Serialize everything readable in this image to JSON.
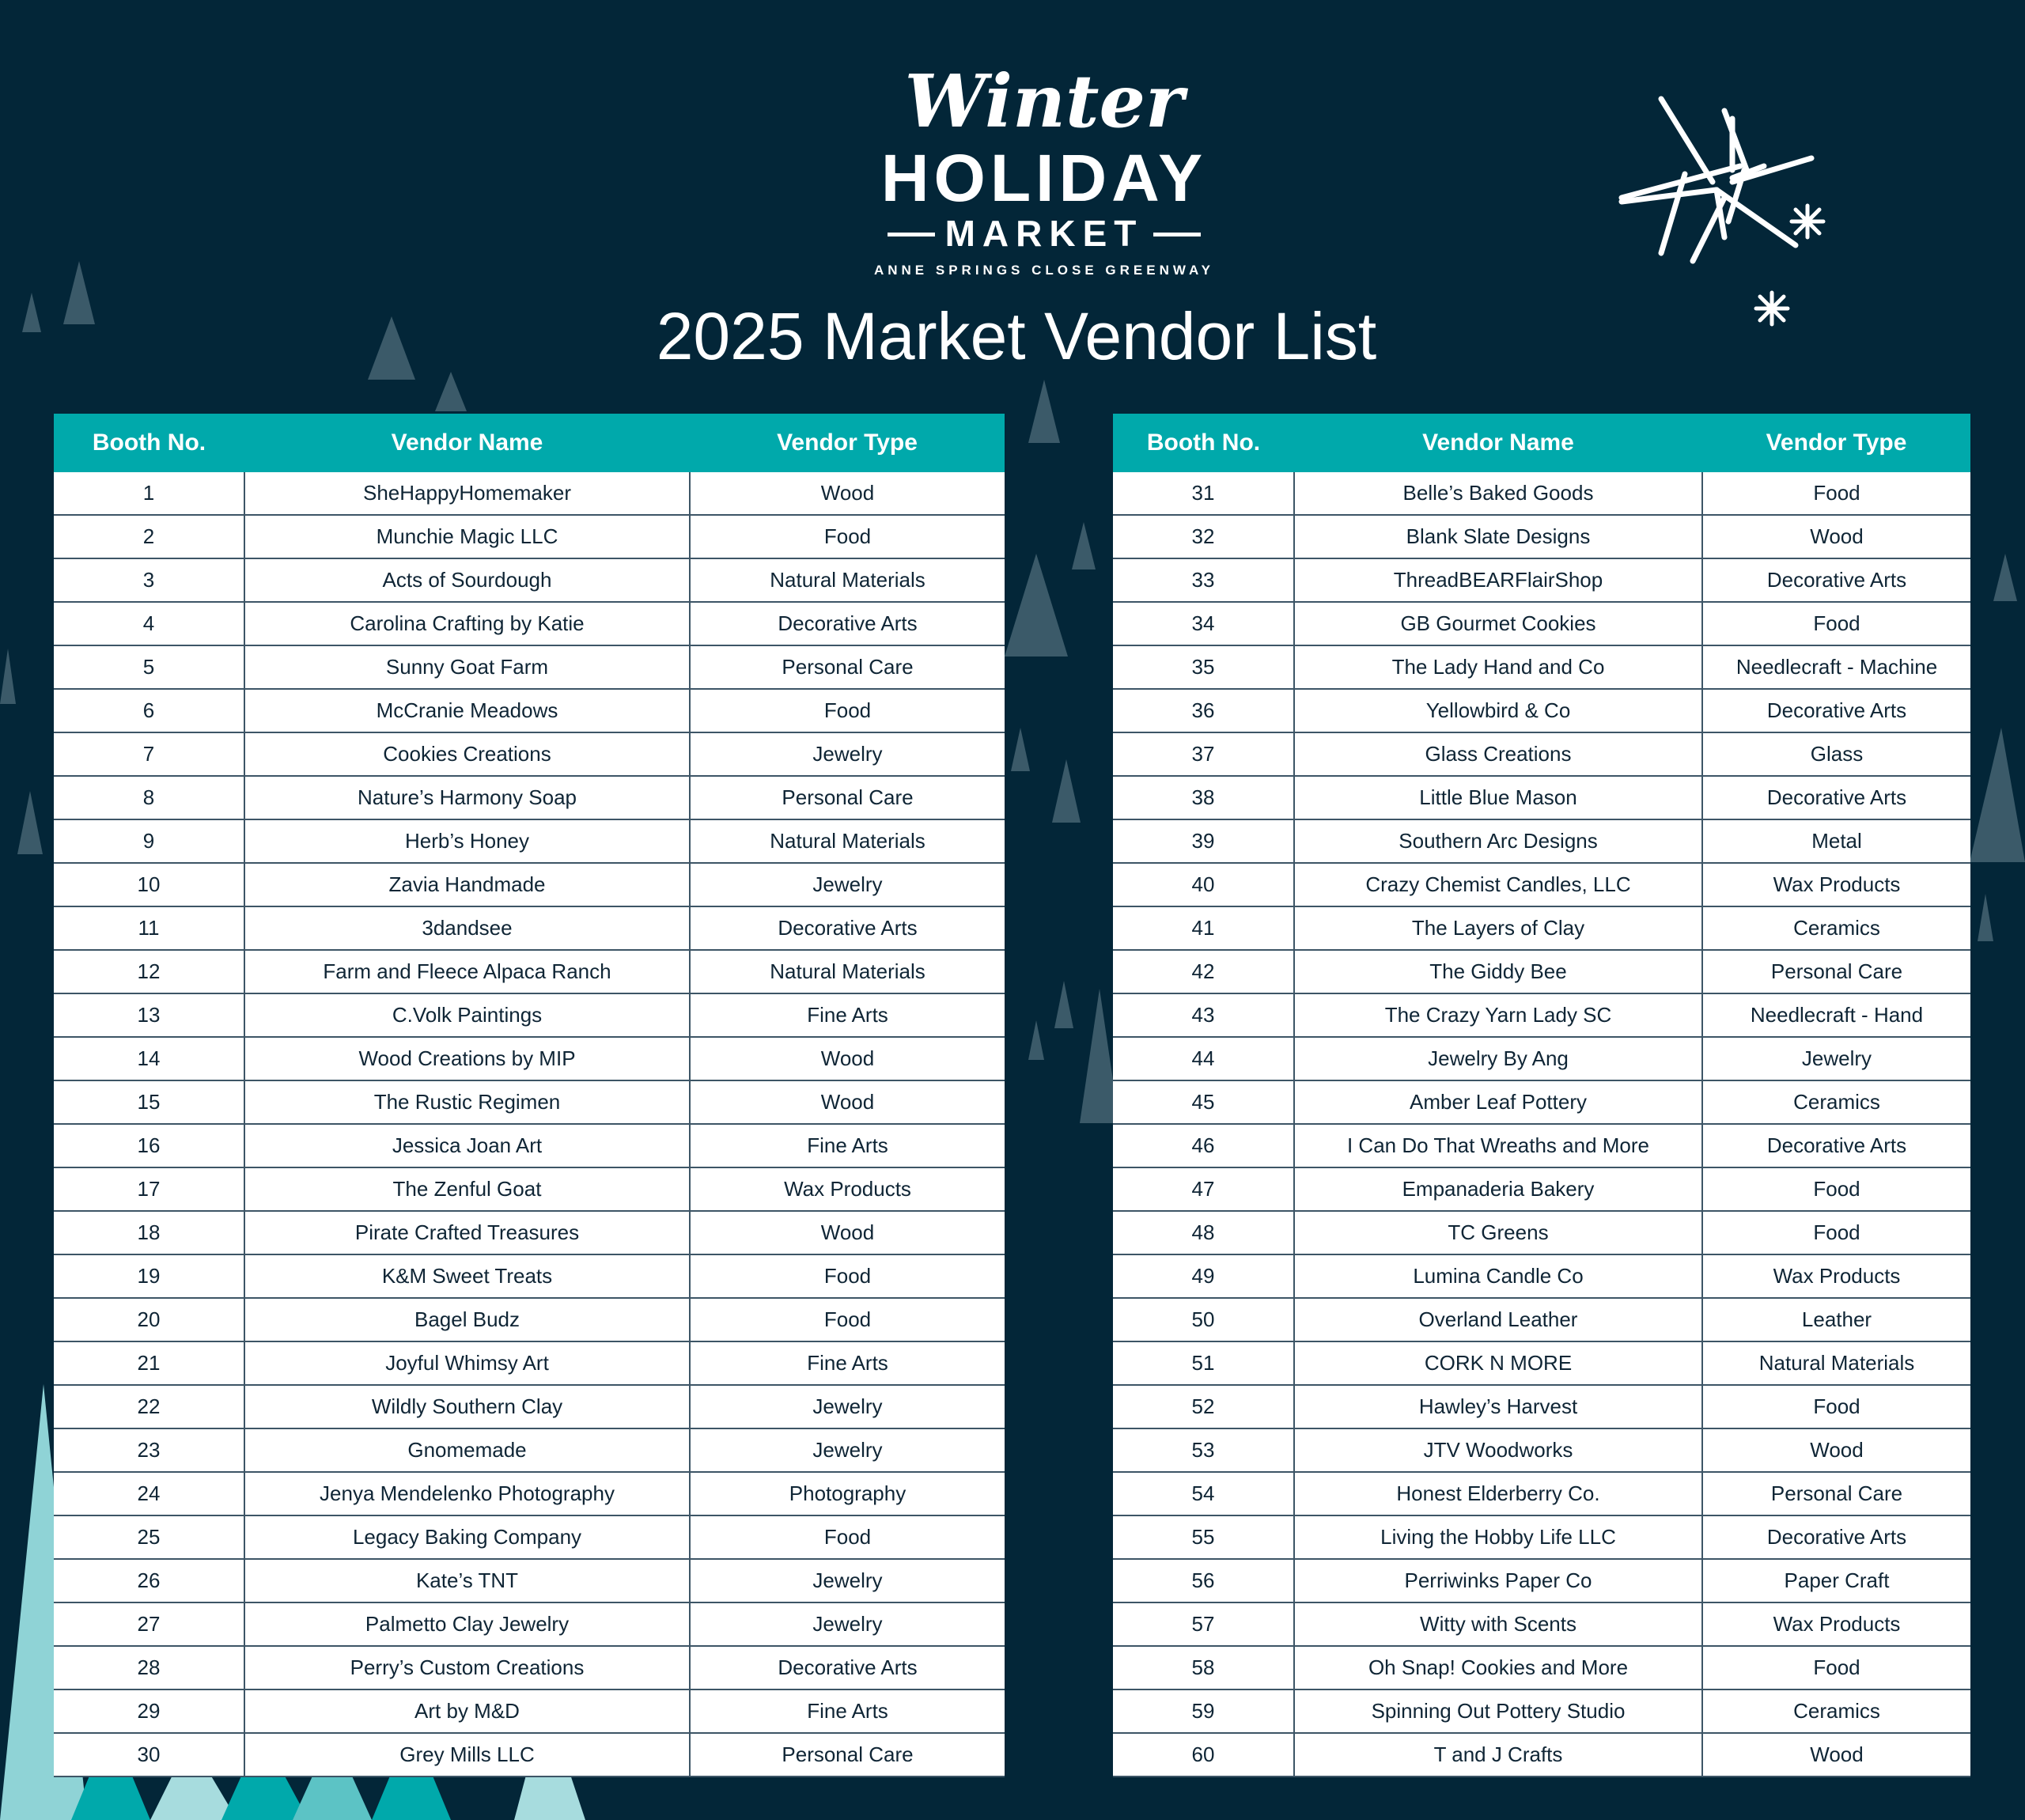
{
  "logo": {
    "line1": "Winter",
    "line2": "HOLIDAY",
    "line3": "MARKET",
    "subtitle": "ANNE SPRINGS CLOSE GREENWAY"
  },
  "title": "2025 Market Vendor List",
  "colors": {
    "background": "#032638",
    "header": "#00a9ab",
    "accent_light": "#8fd3d6"
  },
  "columns": [
    "Booth No.",
    "Vendor Name",
    "Vendor Type"
  ],
  "tables": [
    {
      "rows": [
        [
          "1",
          "SheHappyHomemaker",
          "Wood"
        ],
        [
          "2",
          "Munchie Magic LLC",
          "Food"
        ],
        [
          "3",
          "Acts of Sourdough",
          "Natural Materials"
        ],
        [
          "4",
          "Carolina Crafting by Katie",
          "Decorative Arts"
        ],
        [
          "5",
          "Sunny Goat Farm",
          "Personal Care"
        ],
        [
          "6",
          "McCranie Meadows",
          "Food"
        ],
        [
          "7",
          "Cookies Creations",
          "Jewelry"
        ],
        [
          "8",
          "Nature’s Harmony Soap",
          "Personal Care"
        ],
        [
          "9",
          "Herb’s Honey",
          "Natural Materials"
        ],
        [
          "10",
          "Zavia Handmade",
          "Jewelry"
        ],
        [
          "11",
          "3dandsee",
          "Decorative Arts"
        ],
        [
          "12",
          "Farm and Fleece Alpaca Ranch",
          "Natural Materials"
        ],
        [
          "13",
          "C.Volk Paintings",
          "Fine Arts"
        ],
        [
          "14",
          "Wood Creations by MIP",
          "Wood"
        ],
        [
          "15",
          "The Rustic Regimen",
          "Wood"
        ],
        [
          "16",
          "Jessica Joan Art",
          "Fine Arts"
        ],
        [
          "17",
          "The Zenful Goat",
          "Wax Products"
        ],
        [
          "18",
          "Pirate Crafted Treasures",
          "Wood"
        ],
        [
          "19",
          "K&M Sweet Treats",
          "Food"
        ],
        [
          "20",
          "Bagel Budz",
          "Food"
        ],
        [
          "21",
          "Joyful Whimsy Art",
          "Fine Arts"
        ],
        [
          "22",
          "Wildly Southern Clay",
          "Jewelry"
        ],
        [
          "23",
          "Gnomemade",
          "Jewelry"
        ],
        [
          "24",
          "Jenya Mendelenko Photography",
          "Photography"
        ],
        [
          "25",
          "Legacy Baking Company",
          "Food"
        ],
        [
          "26",
          "Kate’s TNT",
          "Jewelry"
        ],
        [
          "27",
          "Palmetto Clay Jewelry",
          "Jewelry"
        ],
        [
          "28",
          "Perry’s Custom Creations",
          "Decorative Arts"
        ],
        [
          "29",
          "Art by M&D",
          "Fine Arts"
        ],
        [
          "30",
          "Grey Mills LLC",
          "Personal Care"
        ]
      ]
    },
    {
      "rows": [
        [
          "31",
          "Belle’s Baked Goods",
          "Food"
        ],
        [
          "32",
          "Blank Slate Designs",
          "Wood"
        ],
        [
          "33",
          "ThreadBEARFlairShop",
          "Decorative Arts"
        ],
        [
          "34",
          "GB Gourmet Cookies",
          "Food"
        ],
        [
          "35",
          "The Lady Hand and Co",
          "Needlecraft - Machine"
        ],
        [
          "36",
          "Yellowbird & Co",
          "Decorative Arts"
        ],
        [
          "37",
          "Glass Creations",
          "Glass"
        ],
        [
          "38",
          "Little Blue Mason",
          "Decorative Arts"
        ],
        [
          "39",
          "Southern Arc Designs",
          "Metal"
        ],
        [
          "40",
          "Crazy Chemist Candles, LLC",
          "Wax Products"
        ],
        [
          "41",
          "The Layers of Clay",
          "Ceramics"
        ],
        [
          "42",
          "The Giddy Bee",
          "Personal Care"
        ],
        [
          "43",
          "The Crazy Yarn Lady SC",
          "Needlecraft - Hand"
        ],
        [
          "44",
          "Jewelry By Ang",
          "Jewelry"
        ],
        [
          "45",
          "Amber Leaf Pottery",
          "Ceramics"
        ],
        [
          "46",
          "I Can Do That Wreaths and More",
          "Decorative Arts"
        ],
        [
          "47",
          "Empanaderia Bakery",
          "Food"
        ],
        [
          "48",
          "TC Greens",
          "Food"
        ],
        [
          "49",
          "Lumina Candle Co",
          "Wax Products"
        ],
        [
          "50",
          "Overland Leather",
          "Leather"
        ],
        [
          "51",
          "CORK N MORE",
          "Natural Materials"
        ],
        [
          "52",
          "Hawley’s Harvest",
          "Food"
        ],
        [
          "53",
          "JTV Woodworks",
          "Wood"
        ],
        [
          "54",
          "Honest Elderberry Co.",
          "Personal Care"
        ],
        [
          "55",
          "Living the Hobby Life LLC",
          "Decorative Arts"
        ],
        [
          "56",
          "Perriwinks Paper Co",
          "Paper Craft"
        ],
        [
          "57",
          "Witty with Scents",
          "Wax Products"
        ],
        [
          "58",
          "Oh Snap! Cookies and More",
          "Food"
        ],
        [
          "59",
          "Spinning Out Pottery Studio",
          "Ceramics"
        ],
        [
          "60",
          "T and J Crafts",
          "Wood"
        ]
      ]
    }
  ]
}
